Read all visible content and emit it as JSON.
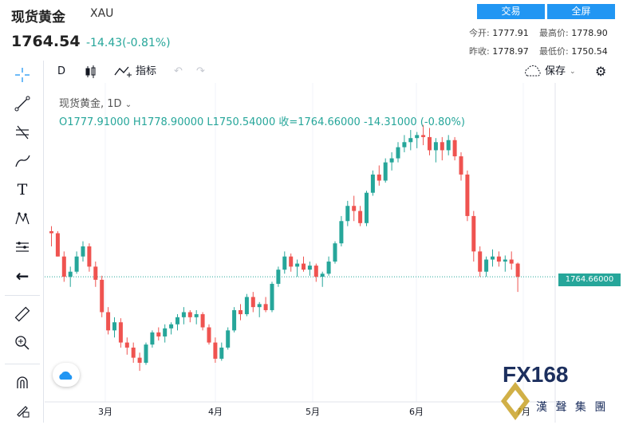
{
  "header": {
    "title": "现货黄金",
    "symbol": "XAU",
    "price": "1764.54",
    "change": "-14.43(-0.81%)",
    "trade_button": "交易",
    "fullscreen_button": "全屏",
    "stats": {
      "open_label": "今开:",
      "open_value": "1777.91",
      "high_label": "最高价:",
      "high_value": "1778.90",
      "prev_label": "昨收:",
      "prev_value": "1778.97",
      "low_label": "最低价:",
      "low_value": "1750.54"
    }
  },
  "toolbar": {
    "interval": "D",
    "indicators_label": "指标",
    "save_label": "保存"
  },
  "legend": {
    "line1": "现货黄金, 1D",
    "line2": "O1777.91000  H1778.90000  L1750.54000  收=1764.66000  -14.31000 (-0.80%)"
  },
  "watermark": {
    "logo": "FX168",
    "subtitle": "漢 聲 集 團"
  },
  "chart_data": {
    "type": "candlestick",
    "x_tick_labels": [
      "3月",
      "4月",
      "5月",
      "6月",
      "7月"
    ],
    "last_price_label": "1764.66000",
    "colors": {
      "up": "#26a69a",
      "down": "#ef5350"
    },
    "ylim": [
      1665,
      1925
    ],
    "candles": [
      [
        1810,
        1815,
        1795,
        1808
      ],
      [
        1808,
        1810,
        1785,
        1785
      ],
      [
        1785,
        1790,
        1760,
        1765
      ],
      [
        1765,
        1775,
        1755,
        1770
      ],
      [
        1770,
        1790,
        1768,
        1785
      ],
      [
        1785,
        1800,
        1780,
        1795
      ],
      [
        1795,
        1798,
        1770,
        1775
      ],
      [
        1775,
        1780,
        1755,
        1762
      ],
      [
        1762,
        1766,
        1725,
        1730
      ],
      [
        1730,
        1735,
        1708,
        1712
      ],
      [
        1712,
        1725,
        1705,
        1720
      ],
      [
        1720,
        1724,
        1695,
        1700
      ],
      [
        1700,
        1705,
        1688,
        1695
      ],
      [
        1695,
        1700,
        1680,
        1685
      ],
      [
        1685,
        1690,
        1672,
        1680
      ],
      [
        1680,
        1700,
        1678,
        1698
      ],
      [
        1698,
        1712,
        1695,
        1710
      ],
      [
        1710,
        1715,
        1702,
        1706
      ],
      [
        1706,
        1718,
        1700,
        1714
      ],
      [
        1714,
        1720,
        1708,
        1718
      ],
      [
        1718,
        1728,
        1712,
        1725
      ],
      [
        1725,
        1735,
        1718,
        1730
      ],
      [
        1730,
        1732,
        1720,
        1725
      ],
      [
        1725,
        1732,
        1718,
        1728
      ],
      [
        1728,
        1730,
        1712,
        1715
      ],
      [
        1715,
        1718,
        1698,
        1700
      ],
      [
        1700,
        1705,
        1680,
        1684
      ],
      [
        1684,
        1700,
        1682,
        1695
      ],
      [
        1695,
        1715,
        1693,
        1712
      ],
      [
        1712,
        1735,
        1710,
        1732
      ],
      [
        1732,
        1738,
        1722,
        1728
      ],
      [
        1728,
        1748,
        1726,
        1745
      ],
      [
        1745,
        1750,
        1730,
        1735
      ],
      [
        1735,
        1740,
        1725,
        1738
      ],
      [
        1738,
        1745,
        1730,
        1732
      ],
      [
        1732,
        1760,
        1730,
        1758
      ],
      [
        1758,
        1775,
        1755,
        1772
      ],
      [
        1772,
        1790,
        1768,
        1785
      ],
      [
        1785,
        1788,
        1770,
        1775
      ],
      [
        1775,
        1782,
        1765,
        1778
      ],
      [
        1778,
        1785,
        1770,
        1772
      ],
      [
        1772,
        1780,
        1766,
        1776
      ],
      [
        1776,
        1778,
        1760,
        1765
      ],
      [
        1765,
        1770,
        1755,
        1768
      ],
      [
        1768,
        1785,
        1766,
        1780
      ],
      [
        1780,
        1800,
        1778,
        1798
      ],
      [
        1798,
        1825,
        1795,
        1820
      ],
      [
        1820,
        1840,
        1815,
        1835
      ],
      [
        1835,
        1845,
        1820,
        1830
      ],
      [
        1830,
        1835,
        1815,
        1818
      ],
      [
        1818,
        1850,
        1815,
        1848
      ],
      [
        1848,
        1870,
        1845,
        1866
      ],
      [
        1866,
        1875,
        1855,
        1860
      ],
      [
        1860,
        1882,
        1858,
        1878
      ],
      [
        1878,
        1888,
        1870,
        1882
      ],
      [
        1882,
        1898,
        1878,
        1893
      ],
      [
        1893,
        1905,
        1888,
        1898
      ],
      [
        1898,
        1910,
        1890,
        1902
      ],
      [
        1902,
        1908,
        1892,
        1905
      ],
      [
        1905,
        1915,
        1895,
        1903
      ],
      [
        1903,
        1912,
        1885,
        1890
      ],
      [
        1890,
        1902,
        1878,
        1898
      ],
      [
        1898,
        1903,
        1880,
        1890
      ],
      [
        1890,
        1905,
        1885,
        1900
      ],
      [
        1900,
        1903,
        1880,
        1884
      ],
      [
        1884,
        1888,
        1860,
        1866
      ],
      [
        1866,
        1870,
        1820,
        1825
      ],
      [
        1825,
        1830,
        1780,
        1790
      ],
      [
        1790,
        1795,
        1765,
        1770
      ],
      [
        1770,
        1785,
        1765,
        1782
      ],
      [
        1782,
        1792,
        1775,
        1785
      ],
      [
        1785,
        1790,
        1775,
        1780
      ],
      [
        1780,
        1786,
        1770,
        1782
      ],
      [
        1782,
        1790,
        1772,
        1778
      ],
      [
        1778,
        1779,
        1750,
        1765
      ]
    ]
  }
}
